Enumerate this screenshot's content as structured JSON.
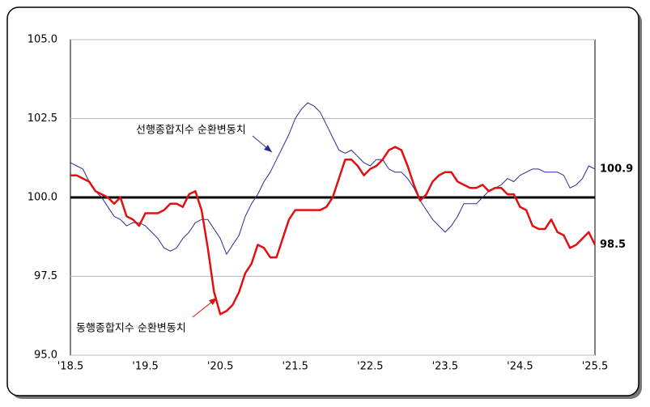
{
  "chart_data": {
    "type": "line",
    "categories": [
      "'18.5",
      null,
      null,
      null,
      null,
      null,
      null,
      null,
      null,
      null,
      null,
      null,
      "'19.5",
      null,
      null,
      null,
      null,
      null,
      null,
      null,
      null,
      null,
      null,
      null,
      "'20.5",
      null,
      null,
      null,
      null,
      null,
      null,
      null,
      null,
      null,
      null,
      null,
      "'21.5",
      null,
      null,
      null,
      null,
      null,
      null,
      null,
      null,
      null,
      null,
      null,
      "'22.5",
      null,
      null,
      null,
      null,
      null,
      null,
      null,
      null,
      null,
      null,
      null,
      "'23.5",
      null,
      null,
      null,
      null,
      null,
      null,
      null,
      null,
      null,
      null,
      null,
      "'24.5",
      null,
      null,
      null,
      null,
      null,
      null,
      null,
      null,
      null,
      null,
      null,
      "'25.5"
    ],
    "series": [
      {
        "name": "선행종합지수 순환변동치",
        "color": "#2b2b8f",
        "width": 1,
        "values": [
          101.1,
          101.0,
          100.9,
          100.5,
          100.2,
          100.0,
          99.7,
          99.4,
          99.3,
          99.1,
          99.2,
          99.2,
          99.1,
          98.9,
          98.7,
          98.4,
          98.3,
          98.4,
          98.7,
          98.9,
          99.2,
          99.3,
          99.3,
          99.0,
          98.7,
          98.2,
          98.5,
          98.8,
          99.4,
          99.8,
          100.1,
          100.5,
          100.8,
          101.2,
          101.6,
          102.0,
          102.5,
          102.8,
          103.0,
          102.9,
          102.7,
          102.3,
          101.9,
          101.5,
          101.4,
          101.5,
          101.3,
          101.1,
          101.0,
          101.2,
          101.2,
          100.9,
          100.8,
          100.8,
          100.6,
          100.3,
          99.9,
          99.6,
          99.3,
          99.1,
          98.9,
          99.1,
          99.4,
          99.8,
          99.8,
          99.8,
          100.0,
          100.2,
          100.3,
          100.4,
          100.6,
          100.5,
          100.7,
          100.8,
          100.9,
          100.9,
          100.8,
          100.8,
          100.8,
          100.7,
          100.3,
          100.4,
          100.6,
          101.0,
          100.9
        ]
      },
      {
        "name": "동행종합지수 순환변동치",
        "color": "#e01010",
        "width": 2.5,
        "values": [
          100.7,
          100.7,
          100.6,
          100.5,
          100.2,
          100.1,
          100.0,
          99.8,
          100.0,
          99.4,
          99.3,
          99.1,
          99.5,
          99.5,
          99.5,
          99.6,
          99.8,
          99.8,
          99.7,
          100.1,
          100.2,
          99.6,
          98.4,
          97.0,
          96.3,
          96.4,
          96.6,
          97.0,
          97.6,
          97.9,
          98.5,
          98.4,
          98.1,
          98.1,
          98.7,
          99.3,
          99.6,
          99.6,
          99.6,
          99.6,
          99.6,
          99.7,
          100.0,
          100.6,
          101.2,
          101.2,
          101.0,
          100.7,
          100.9,
          101.0,
          101.2,
          101.5,
          101.6,
          101.5,
          101.0,
          100.4,
          99.9,
          100.1,
          100.5,
          100.7,
          100.8,
          100.8,
          100.5,
          100.4,
          100.3,
          100.3,
          100.4,
          100.2,
          100.3,
          100.3,
          100.1,
          100.1,
          99.7,
          99.6,
          99.1,
          99.0,
          99.0,
          99.3,
          98.9,
          98.8,
          98.4,
          98.5,
          98.7,
          98.9,
          98.5
        ]
      }
    ],
    "ylim": [
      95,
      105
    ],
    "yticks": [
      {
        "value": 95,
        "label": "95.0"
      },
      {
        "value": 97.5,
        "label": "97.5"
      },
      {
        "value": 100,
        "label": "100.0"
      },
      {
        "value": 102.5,
        "label": "102.5"
      },
      {
        "value": 105,
        "label": "105.0"
      }
    ],
    "hline": 100,
    "grid": true
  }
}
